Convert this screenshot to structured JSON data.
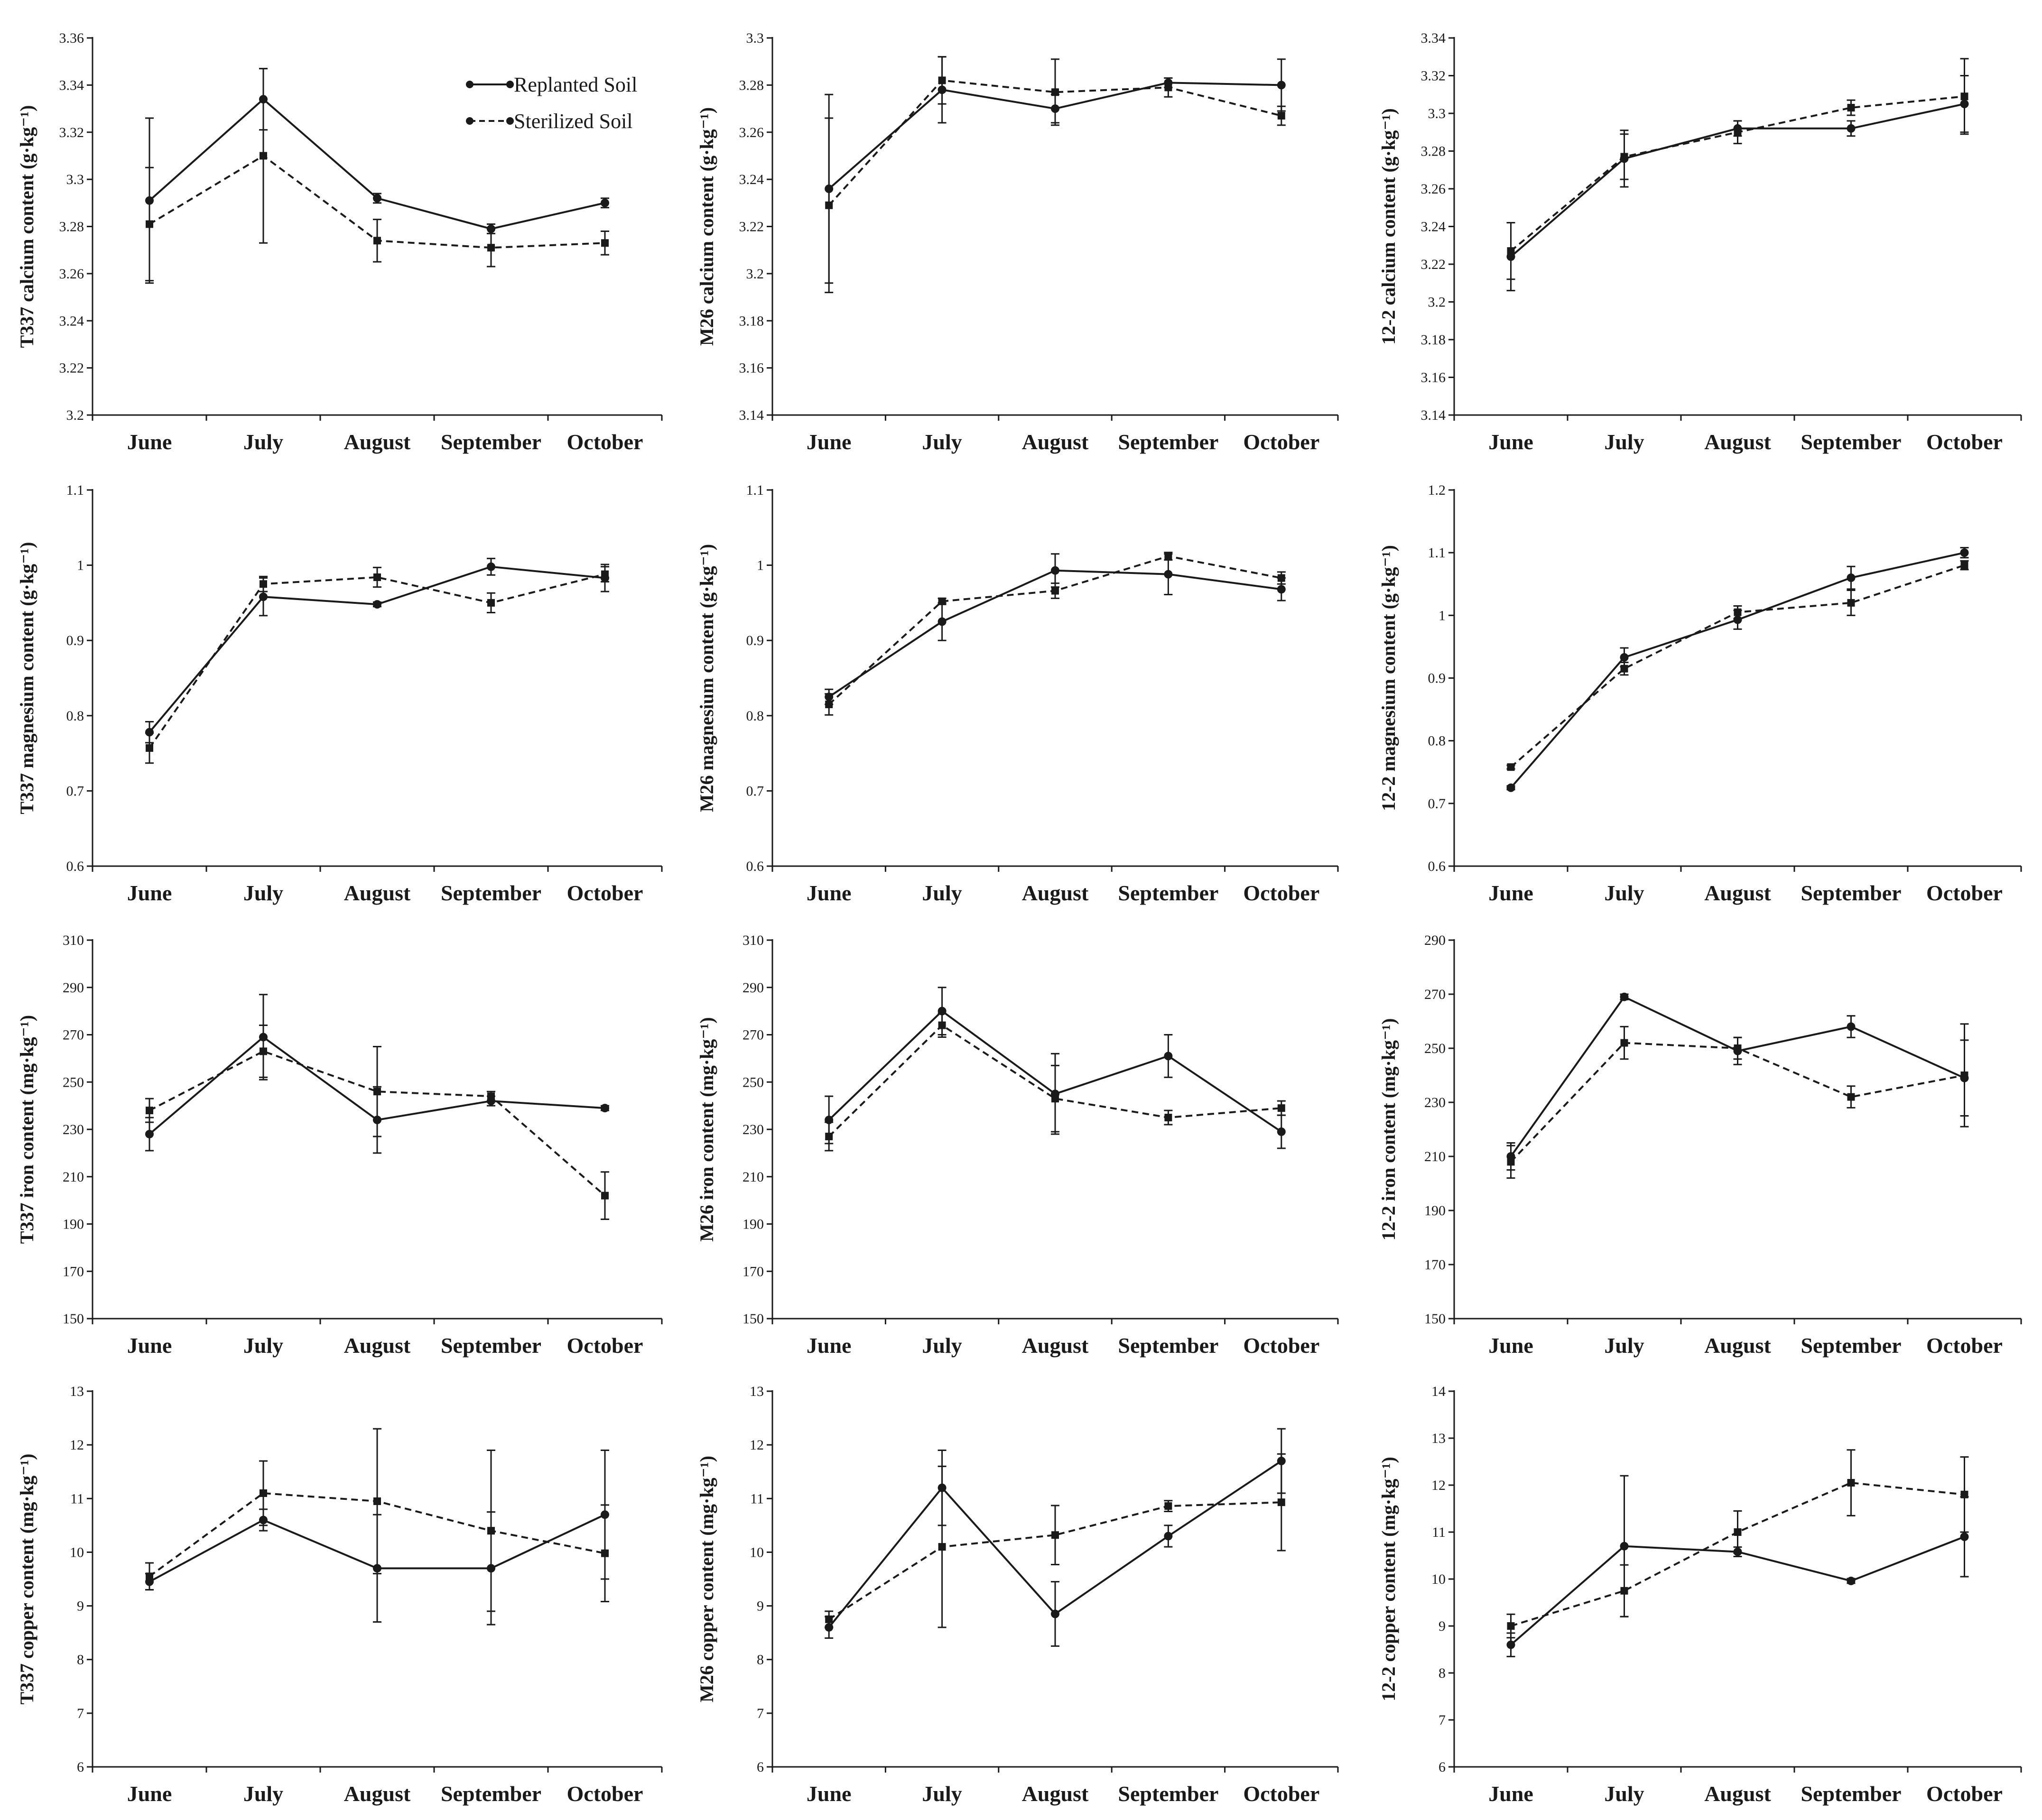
{
  "colors": {
    "line": "#1a1a1a",
    "background": "#ffffff"
  },
  "legend": {
    "replanted": "Replanted Soil",
    "sterilized": "Sterilized Soil"
  },
  "categories": [
    "June",
    "July",
    "August",
    "September",
    "October"
  ],
  "chart_data": [
    {
      "type": "line",
      "ylabel": "T337 calcium content (g·kg⁻¹)",
      "ylim": [
        3.2,
        3.36
      ],
      "yticks": [
        3.2,
        3.22,
        3.24,
        3.26,
        3.28,
        3.3,
        3.32,
        3.34,
        3.36
      ],
      "tick_labels": [
        "3.2",
        "3.22",
        "3.24",
        "3.26",
        "3.28",
        "3.3",
        "3.32",
        "3.34",
        "3.36"
      ],
      "series": [
        {
          "name": "Replanted Soil",
          "values": [
            3.291,
            3.334,
            3.292,
            3.279,
            3.29
          ],
          "errors": [
            0.035,
            0.013,
            0.002,
            0.002,
            0.002
          ]
        },
        {
          "name": "Sterilized Soil",
          "values": [
            3.281,
            3.31,
            3.274,
            3.271,
            3.273
          ],
          "errors": [
            0.024,
            0.037,
            0.009,
            0.008,
            0.005
          ]
        }
      ]
    },
    {
      "type": "line",
      "ylabel": "M26 calcium content (g·kg⁻¹)",
      "ylim": [
        3.14,
        3.3
      ],
      "yticks": [
        3.14,
        3.16,
        3.18,
        3.2,
        3.22,
        3.24,
        3.26,
        3.28,
        3.3
      ],
      "tick_labels": [
        "3.14",
        "3.16",
        "3.18",
        "3.2",
        "3.22",
        "3.24",
        "3.26",
        "3.28",
        "3.3"
      ],
      "series": [
        {
          "name": "Replanted Soil",
          "values": [
            3.236,
            3.278,
            3.27,
            3.281,
            3.28
          ],
          "errors": [
            0.04,
            0.014,
            0.006,
            0.002,
            0.011
          ]
        },
        {
          "name": "Sterilized Soil",
          "values": [
            3.229,
            3.282,
            3.277,
            3.279,
            3.267
          ],
          "errors": [
            0.037,
            0.01,
            0.014,
            0.004,
            0.004
          ]
        }
      ]
    },
    {
      "type": "line",
      "ylabel": "12-2 calcium content (g·kg⁻¹)",
      "ylim": [
        3.14,
        3.34
      ],
      "yticks": [
        3.14,
        3.16,
        3.18,
        3.2,
        3.22,
        3.24,
        3.26,
        3.28,
        3.3,
        3.32,
        3.34
      ],
      "tick_labels": [
        "3.14",
        "3.16",
        "3.18",
        "3.2",
        "3.22",
        "3.24",
        "3.26",
        "3.28",
        "3.3",
        "3.32",
        "3.34"
      ],
      "series": [
        {
          "name": "Replanted Soil",
          "values": [
            3.224,
            3.276,
            3.292,
            3.292,
            3.305
          ],
          "errors": [
            0.018,
            0.015,
            0.004,
            0.004,
            0.015
          ]
        },
        {
          "name": "Sterilized Soil",
          "values": [
            3.227,
            3.277,
            3.29,
            3.303,
            3.309
          ],
          "errors": [
            0.015,
            0.012,
            0.006,
            0.004,
            0.02
          ]
        }
      ]
    },
    {
      "type": "line",
      "ylabel": "T337 magnesium content (g·kg⁻¹)",
      "ylim": [
        0.6,
        1.1
      ],
      "yticks": [
        0.6,
        0.7,
        0.8,
        0.9,
        1.0,
        1.1
      ],
      "tick_labels": [
        "0.6",
        "0.7",
        "0.8",
        "0.9",
        "1",
        "1.1"
      ],
      "series": [
        {
          "name": "Replanted Soil",
          "values": [
            0.778,
            0.958,
            0.948,
            0.998,
            0.983
          ],
          "errors": [
            0.014,
            0.025,
            0.003,
            0.011,
            0.018
          ]
        },
        {
          "name": "Sterilized Soil",
          "values": [
            0.757,
            0.975,
            0.984,
            0.95,
            0.988
          ],
          "errors": [
            0.02,
            0.01,
            0.013,
            0.013,
            0.01
          ]
        }
      ]
    },
    {
      "type": "line",
      "ylabel": "M26 magnesium content (g·kg⁻¹)",
      "ylim": [
        0.6,
        1.1
      ],
      "yticks": [
        0.6,
        0.7,
        0.8,
        0.9,
        1.0,
        1.1
      ],
      "tick_labels": [
        "0.6",
        "0.7",
        "0.8",
        "0.9",
        "1",
        "1.1"
      ],
      "series": [
        {
          "name": "Replanted Soil",
          "values": [
            0.825,
            0.925,
            0.993,
            0.988,
            0.968
          ],
          "errors": [
            0.01,
            0.025,
            0.022,
            0.027,
            0.015
          ]
        },
        {
          "name": "Sterilized Soil",
          "values": [
            0.815,
            0.952,
            0.966,
            1.012,
            0.983
          ],
          "errors": [
            0.014,
            0.004,
            0.01,
            0.005,
            0.008
          ]
        }
      ]
    },
    {
      "type": "line",
      "ylabel": "12-2 magnesium content (g·kg⁻¹)",
      "ylim": [
        0.6,
        1.2
      ],
      "yticks": [
        0.6,
        0.7,
        0.8,
        0.9,
        1.0,
        1.1,
        1.2
      ],
      "tick_labels": [
        "0.6",
        "0.7",
        "0.8",
        "0.9",
        "1",
        "1.1",
        "1.2"
      ],
      "series": [
        {
          "name": "Replanted Soil",
          "values": [
            0.725,
            0.933,
            0.993,
            1.06,
            1.1
          ],
          "errors": [
            0.003,
            0.015,
            0.015,
            0.018,
            0.008
          ]
        },
        {
          "name": "Sterilized Soil",
          "values": [
            0.758,
            0.915,
            1.005,
            1.02,
            1.08
          ],
          "errors": [
            0.003,
            0.01,
            0.01,
            0.02,
            0.007
          ]
        }
      ]
    },
    {
      "type": "line",
      "ylabel": "T337 iron content (mg·kg⁻¹)",
      "ylim": [
        150,
        310
      ],
      "yticks": [
        150,
        170,
        190,
        210,
        230,
        250,
        270,
        290,
        310
      ],
      "tick_labels": [
        "150",
        "170",
        "190",
        "210",
        "230",
        "250",
        "270",
        "290",
        "310"
      ],
      "series": [
        {
          "name": "Replanted Soil",
          "values": [
            228,
            269,
            234,
            242,
            239
          ],
          "errors": [
            7,
            18,
            14,
            2,
            1
          ]
        },
        {
          "name": "Sterilized Soil",
          "values": [
            238,
            263,
            246,
            244,
            202
          ],
          "errors": [
            5,
            11,
            19,
            2,
            10
          ]
        }
      ]
    },
    {
      "type": "line",
      "ylabel": "M26 iron content (mg·kg⁻¹)",
      "ylim": [
        150,
        310
      ],
      "yticks": [
        150,
        170,
        190,
        210,
        230,
        250,
        270,
        290,
        310
      ],
      "tick_labels": [
        "150",
        "170",
        "190",
        "210",
        "230",
        "250",
        "270",
        "290",
        "310"
      ],
      "series": [
        {
          "name": "Replanted Soil",
          "values": [
            234,
            280,
            245,
            261,
            229
          ],
          "errors": [
            10,
            10,
            17,
            9,
            7
          ]
        },
        {
          "name": "Sterilized Soil",
          "values": [
            227,
            274,
            243,
            235,
            239
          ],
          "errors": [
            6,
            5,
            14,
            3,
            3
          ]
        }
      ]
    },
    {
      "type": "line",
      "ylabel": "12-2 iron content (mg·kg⁻¹)",
      "ylim": [
        150,
        290
      ],
      "yticks": [
        150,
        170,
        190,
        210,
        230,
        250,
        270,
        290
      ],
      "tick_labels": [
        "150",
        "170",
        "190",
        "210",
        "230",
        "250",
        "270",
        "290"
      ],
      "series": [
        {
          "name": "Replanted Soil",
          "values": [
            210,
            269,
            249,
            258,
            239
          ],
          "errors": [
            5,
            1,
            5,
            4,
            14
          ]
        },
        {
          "name": "Sterilized Soil",
          "values": [
            208,
            252,
            250,
            232,
            240
          ],
          "errors": [
            6,
            6,
            4,
            4,
            19
          ]
        }
      ]
    },
    {
      "type": "line",
      "ylabel": "T337 copper content (mg·kg⁻¹)",
      "ylim": [
        6,
        13
      ],
      "yticks": [
        6,
        7,
        8,
        9,
        10,
        11,
        12,
        13
      ],
      "tick_labels": [
        "6",
        "7",
        "8",
        "9",
        "10",
        "11",
        "12",
        "13"
      ],
      "series": [
        {
          "name": "Replanted Soil",
          "values": [
            9.45,
            10.6,
            9.7,
            9.7,
            10.7
          ],
          "errors": [
            0.15,
            0.2,
            1.0,
            1.05,
            1.2
          ]
        },
        {
          "name": "Sterilized Soil",
          "values": [
            9.55,
            11.1,
            10.95,
            10.4,
            9.98
          ],
          "errors": [
            0.25,
            0.6,
            1.35,
            1.5,
            0.9
          ]
        }
      ]
    },
    {
      "type": "line",
      "ylabel": "M26 copper content (mg·kg⁻¹)",
      "ylim": [
        6,
        13
      ],
      "yticks": [
        6,
        7,
        8,
        9,
        10,
        11,
        12,
        13
      ],
      "tick_labels": [
        "6",
        "7",
        "8",
        "9",
        "10",
        "11",
        "12",
        "13"
      ],
      "series": [
        {
          "name": "Replanted Soil",
          "values": [
            8.6,
            11.2,
            8.85,
            10.3,
            11.7
          ],
          "errors": [
            0.2,
            0.7,
            0.6,
            0.2,
            0.6
          ]
        },
        {
          "name": "Sterilized Soil",
          "values": [
            8.75,
            10.1,
            10.32,
            10.86,
            10.93
          ],
          "errors": [
            0.15,
            1.5,
            0.55,
            0.1,
            0.9
          ]
        }
      ]
    },
    {
      "type": "line",
      "ylabel": "12-2 copper content (mg·kg⁻¹)",
      "ylim": [
        6,
        14
      ],
      "yticks": [
        6,
        7,
        8,
        9,
        10,
        11,
        12,
        13,
        14
      ],
      "tick_labels": [
        "6",
        "7",
        "8",
        "9",
        "10",
        "11",
        "12",
        "13",
        "14"
      ],
      "series": [
        {
          "name": "Replanted Soil",
          "values": [
            8.6,
            10.7,
            10.58,
            9.96,
            10.9
          ],
          "errors": [
            0.25,
            1.5,
            0.1,
            0.05,
            0.85
          ]
        },
        {
          "name": "Sterilized Soil",
          "values": [
            9.0,
            9.75,
            11.0,
            12.05,
            11.8
          ],
          "errors": [
            0.25,
            0.55,
            0.45,
            0.7,
            0.8
          ]
        }
      ]
    }
  ]
}
